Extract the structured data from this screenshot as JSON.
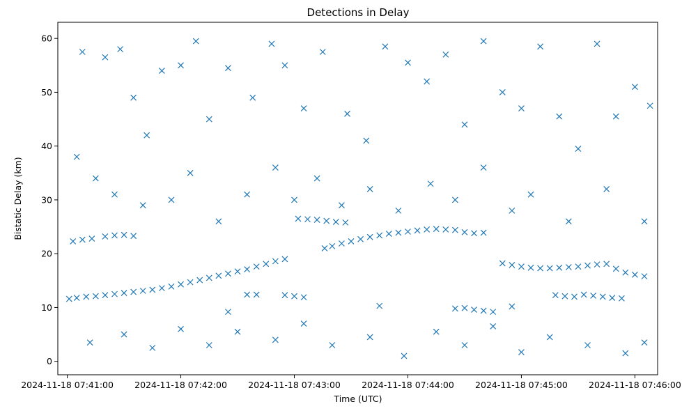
{
  "chart_data": {
    "type": "scatter",
    "title": "Detections in Delay",
    "xlabel": "Time (UTC)",
    "ylabel": "Bistatic Delay (km)",
    "marker": "x",
    "color": "#1f77b4",
    "xlim": [
      "2024-11-18 07:40:55",
      "2024-11-18 07:46:12"
    ],
    "ylim": [
      -2.5,
      63
    ],
    "xticks": [
      "2024-11-18 07:41:00",
      "2024-11-18 07:42:00",
      "2024-11-18 07:43:00",
      "2024-11-18 07:44:00",
      "2024-11-18 07:45:00",
      "2024-11-18 07:46:00"
    ],
    "xtick_labels": [
      "2024-11-18 07:41:00",
      "2024-11-18 07:42:00",
      "2024-11-18 07:43:00",
      "2024-11-18 07:44:00",
      "2024-11-18 07:45:00",
      "2024-11-18 07:46:00"
    ],
    "yticks": [
      0,
      10,
      20,
      30,
      40,
      50,
      60
    ],
    "ytick_labels": [
      "0",
      "10",
      "20",
      "30",
      "40",
      "50",
      "60"
    ],
    "grid": false,
    "series": [
      {
        "points": [
          [
            "2024-11-18 07:41:01",
            11.6
          ],
          [
            "2024-11-18 07:41:05",
            11.8
          ],
          [
            "2024-11-18 07:41:10",
            12.0
          ],
          [
            "2024-11-18 07:41:15",
            12.1
          ],
          [
            "2024-11-18 07:41:20",
            12.3
          ],
          [
            "2024-11-18 07:41:25",
            12.5
          ],
          [
            "2024-11-18 07:41:30",
            12.7
          ],
          [
            "2024-11-18 07:41:35",
            12.9
          ],
          [
            "2024-11-18 07:41:40",
            13.1
          ],
          [
            "2024-11-18 07:41:45",
            13.3
          ],
          [
            "2024-11-18 07:41:50",
            13.6
          ],
          [
            "2024-11-18 07:41:55",
            13.9
          ],
          [
            "2024-11-18 07:42:00",
            14.3
          ],
          [
            "2024-11-18 07:42:05",
            14.7
          ],
          [
            "2024-11-18 07:42:10",
            15.1
          ],
          [
            "2024-11-18 07:42:15",
            15.5
          ],
          [
            "2024-11-18 07:42:20",
            15.9
          ],
          [
            "2024-11-18 07:42:25",
            16.3
          ],
          [
            "2024-11-18 07:42:30",
            16.7
          ],
          [
            "2024-11-18 07:42:35",
            17.1
          ],
          [
            "2024-11-18 07:42:40",
            17.6
          ],
          [
            "2024-11-18 07:42:45",
            18.1
          ],
          [
            "2024-11-18 07:42:50",
            18.6
          ],
          [
            "2024-11-18 07:42:55",
            19.0
          ],
          [
            "2024-11-18 07:43:16",
            21.0
          ],
          [
            "2024-11-18 07:43:20",
            21.4
          ],
          [
            "2024-11-18 07:43:25",
            21.9
          ],
          [
            "2024-11-18 07:43:30",
            22.3
          ],
          [
            "2024-11-18 07:43:35",
            22.7
          ],
          [
            "2024-11-18 07:43:40",
            23.1
          ],
          [
            "2024-11-18 07:43:45",
            23.4
          ],
          [
            "2024-11-18 07:43:50",
            23.7
          ],
          [
            "2024-11-18 07:43:55",
            23.9
          ],
          [
            "2024-11-18 07:44:00",
            24.1
          ],
          [
            "2024-11-18 07:44:05",
            24.3
          ],
          [
            "2024-11-18 07:44:10",
            24.5
          ],
          [
            "2024-11-18 07:44:15",
            24.6
          ],
          [
            "2024-11-18 07:44:20",
            24.5
          ],
          [
            "2024-11-18 07:44:25",
            24.4
          ],
          [
            "2024-11-18 07:43:02",
            26.5
          ],
          [
            "2024-11-18 07:43:07",
            26.4
          ],
          [
            "2024-11-18 07:43:12",
            26.3
          ],
          [
            "2024-11-18 07:43:17",
            26.1
          ],
          [
            "2024-11-18 07:43:22",
            25.9
          ],
          [
            "2024-11-18 07:43:27",
            25.8
          ],
          [
            "2024-11-18 07:41:20",
            23.2
          ],
          [
            "2024-11-18 07:41:25",
            23.4
          ],
          [
            "2024-11-18 07:41:30",
            23.5
          ],
          [
            "2024-11-18 07:41:35",
            23.3
          ],
          [
            "2024-11-18 07:41:03",
            22.3
          ],
          [
            "2024-11-18 07:41:08",
            22.6
          ],
          [
            "2024-11-18 07:41:13",
            22.8
          ],
          [
            "2024-11-18 07:44:30",
            24.0
          ],
          [
            "2024-11-18 07:44:35",
            23.8
          ],
          [
            "2024-11-18 07:44:40",
            23.9
          ],
          [
            "2024-11-18 07:44:50",
            18.2
          ],
          [
            "2024-11-18 07:44:55",
            17.9
          ],
          [
            "2024-11-18 07:45:00",
            17.6
          ],
          [
            "2024-11-18 07:45:05",
            17.4
          ],
          [
            "2024-11-18 07:45:10",
            17.3
          ],
          [
            "2024-11-18 07:45:15",
            17.3
          ],
          [
            "2024-11-18 07:45:20",
            17.4
          ],
          [
            "2024-11-18 07:45:25",
            17.5
          ],
          [
            "2024-11-18 07:45:30",
            17.6
          ],
          [
            "2024-11-18 07:45:35",
            17.8
          ],
          [
            "2024-11-18 07:45:40",
            18.0
          ],
          [
            "2024-11-18 07:45:45",
            18.1
          ],
          [
            "2024-11-18 07:45:50",
            17.2
          ],
          [
            "2024-11-18 07:45:55",
            16.5
          ],
          [
            "2024-11-18 07:46:00",
            16.1
          ],
          [
            "2024-11-18 07:46:05",
            15.8
          ],
          [
            "2024-11-18 07:45:18",
            12.3
          ],
          [
            "2024-11-18 07:45:23",
            12.1
          ],
          [
            "2024-11-18 07:45:28",
            12.0
          ],
          [
            "2024-11-18 07:45:33",
            12.4
          ],
          [
            "2024-11-18 07:45:38",
            12.2
          ],
          [
            "2024-11-18 07:45:43",
            12.0
          ],
          [
            "2024-11-18 07:45:48",
            11.8
          ],
          [
            "2024-11-18 07:45:53",
            11.7
          ],
          [
            "2024-11-18 07:44:25",
            9.8
          ],
          [
            "2024-11-18 07:44:30",
            9.9
          ],
          [
            "2024-11-18 07:44:35",
            9.6
          ],
          [
            "2024-11-18 07:44:40",
            9.4
          ],
          [
            "2024-11-18 07:44:45",
            9.2
          ],
          [
            "2024-11-18 07:42:35",
            12.4
          ],
          [
            "2024-11-18 07:42:40",
            12.4
          ],
          [
            "2024-11-18 07:42:55",
            12.3
          ],
          [
            "2024-11-18 07:43:00",
            12.1
          ],
          [
            "2024-11-18 07:43:05",
            11.9
          ],
          [
            "2024-11-18 07:42:25",
            9.2
          ],
          [
            "2024-11-18 07:43:45",
            10.3
          ],
          [
            "2024-11-18 07:44:55",
            10.2
          ],
          [
            "2024-11-18 07:41:08",
            57.5
          ],
          [
            "2024-11-18 07:41:20",
            56.5
          ],
          [
            "2024-11-18 07:41:28",
            58.0
          ],
          [
            "2024-11-18 07:41:35",
            49.0
          ],
          [
            "2024-11-18 07:41:42",
            42.0
          ],
          [
            "2024-11-18 07:41:50",
            54.0
          ],
          [
            "2024-11-18 07:42:00",
            55.0
          ],
          [
            "2024-11-18 07:42:08",
            59.5
          ],
          [
            "2024-11-18 07:42:15",
            45.0
          ],
          [
            "2024-11-18 07:42:25",
            54.5
          ],
          [
            "2024-11-18 07:42:38",
            49.0
          ],
          [
            "2024-11-18 07:42:48",
            59.0
          ],
          [
            "2024-11-18 07:42:55",
            55.0
          ],
          [
            "2024-11-18 07:43:05",
            47.0
          ],
          [
            "2024-11-18 07:43:15",
            57.5
          ],
          [
            "2024-11-18 07:43:28",
            46.0
          ],
          [
            "2024-11-18 07:43:38",
            41.0
          ],
          [
            "2024-11-18 07:43:48",
            58.5
          ],
          [
            "2024-11-18 07:44:00",
            55.5
          ],
          [
            "2024-11-18 07:44:10",
            52.0
          ],
          [
            "2024-11-18 07:44:20",
            57.0
          ],
          [
            "2024-11-18 07:44:30",
            44.0
          ],
          [
            "2024-11-18 07:44:40",
            59.5
          ],
          [
            "2024-11-18 07:44:50",
            50.0
          ],
          [
            "2024-11-18 07:45:00",
            47.0
          ],
          [
            "2024-11-18 07:45:10",
            58.5
          ],
          [
            "2024-11-18 07:45:20",
            45.5
          ],
          [
            "2024-11-18 07:45:30",
            39.5
          ],
          [
            "2024-11-18 07:45:40",
            59.0
          ],
          [
            "2024-11-18 07:45:50",
            45.5
          ],
          [
            "2024-11-18 07:46:00",
            51.0
          ],
          [
            "2024-11-18 07:46:08",
            47.5
          ],
          [
            "2024-11-18 07:41:05",
            38.0
          ],
          [
            "2024-11-18 07:41:15",
            34.0
          ],
          [
            "2024-11-18 07:41:25",
            31.0
          ],
          [
            "2024-11-18 07:41:40",
            29.0
          ],
          [
            "2024-11-18 07:41:55",
            30.0
          ],
          [
            "2024-11-18 07:42:05",
            35.0
          ],
          [
            "2024-11-18 07:42:20",
            26.0
          ],
          [
            "2024-11-18 07:42:35",
            31.0
          ],
          [
            "2024-11-18 07:42:50",
            36.0
          ],
          [
            "2024-11-18 07:43:00",
            30.0
          ],
          [
            "2024-11-18 07:43:12",
            34.0
          ],
          [
            "2024-11-18 07:43:25",
            29.0
          ],
          [
            "2024-11-18 07:43:40",
            32.0
          ],
          [
            "2024-11-18 07:43:55",
            28.0
          ],
          [
            "2024-11-18 07:44:12",
            33.0
          ],
          [
            "2024-11-18 07:44:25",
            30.0
          ],
          [
            "2024-11-18 07:44:40",
            36.0
          ],
          [
            "2024-11-18 07:44:55",
            28.0
          ],
          [
            "2024-11-18 07:45:05",
            31.0
          ],
          [
            "2024-11-18 07:45:25",
            26.0
          ],
          [
            "2024-11-18 07:45:45",
            32.0
          ],
          [
            "2024-11-18 07:46:05",
            26.0
          ],
          [
            "2024-11-18 07:41:12",
            3.5
          ],
          [
            "2024-11-18 07:41:30",
            5.0
          ],
          [
            "2024-11-18 07:41:45",
            2.5
          ],
          [
            "2024-11-18 07:42:00",
            6.0
          ],
          [
            "2024-11-18 07:42:15",
            3.0
          ],
          [
            "2024-11-18 07:42:30",
            5.5
          ],
          [
            "2024-11-18 07:42:50",
            4.0
          ],
          [
            "2024-11-18 07:43:05",
            7.0
          ],
          [
            "2024-11-18 07:43:20",
            3.0
          ],
          [
            "2024-11-18 07:43:40",
            4.5
          ],
          [
            "2024-11-18 07:43:58",
            1.0
          ],
          [
            "2024-11-18 07:44:15",
            5.5
          ],
          [
            "2024-11-18 07:44:30",
            3.0
          ],
          [
            "2024-11-18 07:44:45",
            6.5
          ],
          [
            "2024-11-18 07:45:00",
            1.7
          ],
          [
            "2024-11-18 07:45:15",
            4.5
          ],
          [
            "2024-11-18 07:45:35",
            3.0
          ],
          [
            "2024-11-18 07:45:55",
            1.5
          ],
          [
            "2024-11-18 07:46:05",
            3.5
          ]
        ]
      }
    ]
  }
}
